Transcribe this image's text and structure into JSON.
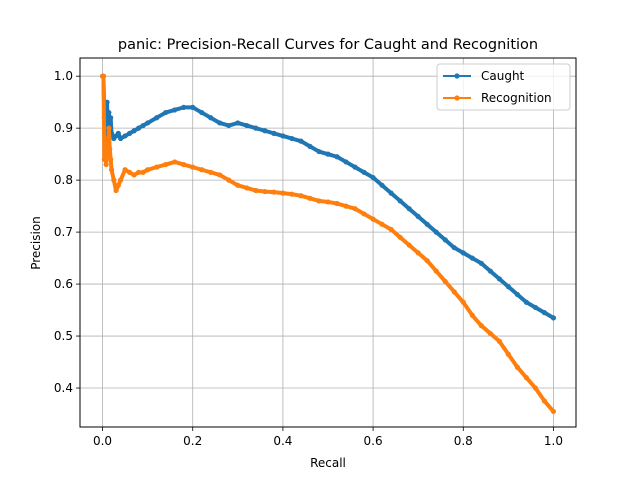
{
  "chart_data": {
    "type": "line",
    "title": "panic: Precision-Recall Curves for Caught and Recognition",
    "xlabel": "Recall",
    "ylabel": "Precision",
    "xlim": [
      -0.05,
      1.05
    ],
    "ylim": [
      0.325,
      1.035
    ],
    "xticks": [
      0.0,
      0.2,
      0.4,
      0.6,
      0.8,
      1.0
    ],
    "xtick_labels": [
      "0.0",
      "0.2",
      "0.4",
      "0.6",
      "0.8",
      "1.0"
    ],
    "yticks": [
      0.4,
      0.5,
      0.6,
      0.7,
      0.8,
      0.9,
      1.0
    ],
    "ytick_labels": [
      "0.4",
      "0.5",
      "0.6",
      "0.7",
      "0.8",
      "0.9",
      "1.0"
    ],
    "grid": true,
    "legend_position": "top-right",
    "series": [
      {
        "name": "Caught",
        "color": "#1f77b4",
        "marker": "circle",
        "x": [
          0.0,
          0.002,
          0.004,
          0.006,
          0.008,
          0.01,
          0.012,
          0.014,
          0.016,
          0.018,
          0.02,
          0.025,
          0.03,
          0.035,
          0.04,
          0.05,
          0.06,
          0.07,
          0.08,
          0.09,
          0.1,
          0.12,
          0.14,
          0.16,
          0.18,
          0.2,
          0.22,
          0.24,
          0.26,
          0.28,
          0.3,
          0.32,
          0.34,
          0.36,
          0.38,
          0.4,
          0.42,
          0.44,
          0.46,
          0.48,
          0.5,
          0.52,
          0.54,
          0.56,
          0.58,
          0.6,
          0.62,
          0.64,
          0.66,
          0.68,
          0.7,
          0.72,
          0.74,
          0.76,
          0.78,
          0.8,
          0.82,
          0.84,
          0.86,
          0.88,
          0.9,
          0.92,
          0.94,
          0.96,
          0.98,
          1.0
        ],
        "y": [
          1.0,
          1.0,
          0.92,
          0.94,
          0.9,
          0.95,
          0.88,
          0.93,
          0.9,
          0.92,
          0.89,
          0.88,
          0.885,
          0.89,
          0.88,
          0.885,
          0.89,
          0.895,
          0.9,
          0.905,
          0.91,
          0.92,
          0.93,
          0.935,
          0.94,
          0.94,
          0.93,
          0.92,
          0.91,
          0.905,
          0.91,
          0.905,
          0.9,
          0.895,
          0.89,
          0.885,
          0.88,
          0.875,
          0.865,
          0.855,
          0.85,
          0.845,
          0.835,
          0.825,
          0.815,
          0.805,
          0.79,
          0.775,
          0.76,
          0.745,
          0.73,
          0.715,
          0.7,
          0.685,
          0.67,
          0.66,
          0.65,
          0.64,
          0.625,
          0.61,
          0.595,
          0.58,
          0.565,
          0.555,
          0.545,
          0.535
        ]
      },
      {
        "name": "Recognition",
        "color": "#ff7f0e",
        "marker": "circle",
        "x": [
          0.0,
          0.002,
          0.004,
          0.006,
          0.008,
          0.01,
          0.012,
          0.014,
          0.016,
          0.018,
          0.02,
          0.025,
          0.03,
          0.035,
          0.04,
          0.05,
          0.06,
          0.07,
          0.08,
          0.09,
          0.1,
          0.12,
          0.14,
          0.16,
          0.18,
          0.2,
          0.22,
          0.24,
          0.26,
          0.28,
          0.3,
          0.32,
          0.34,
          0.36,
          0.38,
          0.4,
          0.42,
          0.44,
          0.46,
          0.48,
          0.5,
          0.52,
          0.54,
          0.56,
          0.58,
          0.6,
          0.62,
          0.64,
          0.66,
          0.68,
          0.7,
          0.72,
          0.74,
          0.76,
          0.78,
          0.8,
          0.82,
          0.84,
          0.86,
          0.88,
          0.9,
          0.92,
          0.94,
          0.96,
          0.98,
          1.0
        ],
        "y": [
          1.0,
          1.0,
          0.84,
          0.86,
          0.83,
          0.88,
          0.85,
          0.9,
          0.86,
          0.84,
          0.82,
          0.8,
          0.78,
          0.79,
          0.8,
          0.82,
          0.815,
          0.81,
          0.815,
          0.815,
          0.82,
          0.825,
          0.83,
          0.835,
          0.83,
          0.825,
          0.82,
          0.815,
          0.81,
          0.8,
          0.79,
          0.785,
          0.78,
          0.778,
          0.777,
          0.775,
          0.773,
          0.77,
          0.765,
          0.76,
          0.758,
          0.755,
          0.75,
          0.745,
          0.735,
          0.725,
          0.715,
          0.705,
          0.69,
          0.675,
          0.66,
          0.645,
          0.625,
          0.605,
          0.585,
          0.565,
          0.54,
          0.52,
          0.505,
          0.49,
          0.465,
          0.44,
          0.42,
          0.4,
          0.375,
          0.355
        ]
      }
    ]
  }
}
